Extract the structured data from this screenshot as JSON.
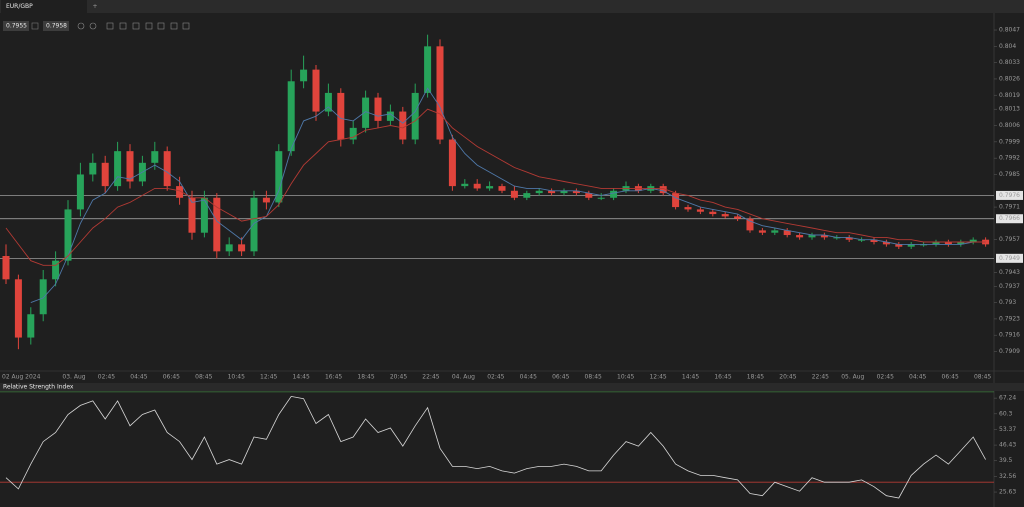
{
  "header": {
    "tab": "EUR/GBP",
    "new_tab": "+",
    "bid": "0.7955",
    "ask": "0.7958"
  },
  "chart_data": [
    {
      "type": "candlestick",
      "up_color": "#27a35a",
      "down_color": "#e0443c",
      "open": [
        0.795,
        0.794,
        0.7915,
        0.7925,
        0.794,
        0.7948,
        0.797,
        0.7985,
        0.799,
        0.798,
        0.7995,
        0.7982,
        0.799,
        0.7995,
        0.798,
        0.7975,
        0.796,
        0.7975,
        0.7952,
        0.7955,
        0.7952,
        0.7975,
        0.7973,
        0.7995,
        0.8025,
        0.803,
        0.8012,
        0.802,
        0.8,
        0.8005,
        0.8018,
        0.8008,
        0.8012,
        0.8,
        0.802,
        0.804,
        0.8,
        0.798,
        0.7981,
        0.7979,
        0.798,
        0.7978,
        0.7975,
        0.7977,
        0.7978,
        0.7977,
        0.7978,
        0.7977,
        0.7975,
        0.7975,
        0.7978,
        0.798,
        0.7978,
        0.798,
        0.7977,
        0.7971,
        0.797,
        0.7969,
        0.7968,
        0.7967,
        0.7966,
        0.7961,
        0.796,
        0.7961,
        0.7959,
        0.7958,
        0.7959,
        0.7958,
        0.7958,
        0.7957,
        0.7957,
        0.7956,
        0.7955,
        0.7954,
        0.7955,
        0.7955,
        0.7956,
        0.7955,
        0.7956,
        0.7957
      ],
      "high": [
        0.7955,
        0.7942,
        0.7928,
        0.7944,
        0.7952,
        0.7974,
        0.799,
        0.7994,
        0.7993,
        0.7999,
        0.7998,
        0.7993,
        0.7999,
        0.7997,
        0.7984,
        0.7978,
        0.7978,
        0.7977,
        0.7958,
        0.7958,
        0.7978,
        0.7978,
        0.7998,
        0.803,
        0.8036,
        0.8032,
        0.8024,
        0.8022,
        0.8008,
        0.8021,
        0.802,
        0.8015,
        0.8014,
        0.8024,
        0.8045,
        0.8043,
        0.8002,
        0.7983,
        0.7983,
        0.7982,
        0.7981,
        0.798,
        0.7978,
        0.7979,
        0.7979,
        0.7979,
        0.7979,
        0.7978,
        0.7977,
        0.7979,
        0.7982,
        0.7981,
        0.7981,
        0.7981,
        0.7978,
        0.7972,
        0.7971,
        0.797,
        0.7969,
        0.7968,
        0.7967,
        0.7962,
        0.7962,
        0.7962,
        0.796,
        0.796,
        0.796,
        0.7959,
        0.7959,
        0.7958,
        0.7958,
        0.7957,
        0.7956,
        0.7956,
        0.7956,
        0.7957,
        0.7957,
        0.7957,
        0.7958,
        0.7958
      ],
      "low": [
        0.7938,
        0.791,
        0.7912,
        0.7922,
        0.7937,
        0.7946,
        0.7967,
        0.7982,
        0.7977,
        0.7978,
        0.7979,
        0.798,
        0.7987,
        0.7978,
        0.7972,
        0.7957,
        0.7958,
        0.7949,
        0.795,
        0.795,
        0.795,
        0.797,
        0.7971,
        0.7993,
        0.8022,
        0.8008,
        0.801,
        0.7997,
        0.7998,
        0.8003,
        0.8005,
        0.8006,
        0.7998,
        0.7998,
        0.8018,
        0.7998,
        0.7978,
        0.7979,
        0.7978,
        0.7978,
        0.7977,
        0.7974,
        0.7974,
        0.7976,
        0.7976,
        0.7976,
        0.7976,
        0.7974,
        0.7974,
        0.7974,
        0.7977,
        0.7977,
        0.7977,
        0.7976,
        0.797,
        0.7969,
        0.7968,
        0.7967,
        0.7966,
        0.7965,
        0.796,
        0.7959,
        0.7959,
        0.7958,
        0.7957,
        0.7957,
        0.7957,
        0.7957,
        0.7956,
        0.7956,
        0.7955,
        0.7954,
        0.7953,
        0.7953,
        0.7954,
        0.7954,
        0.7954,
        0.7954,
        0.7955,
        0.7954
      ],
      "close": [
        0.794,
        0.7915,
        0.7925,
        0.794,
        0.7948,
        0.797,
        0.7985,
        0.799,
        0.798,
        0.7995,
        0.7982,
        0.799,
        0.7995,
        0.798,
        0.7975,
        0.796,
        0.7975,
        0.7952,
        0.7955,
        0.7952,
        0.7975,
        0.7973,
        0.7995,
        0.8025,
        0.803,
        0.8012,
        0.802,
        0.8,
        0.8005,
        0.8018,
        0.8008,
        0.8012,
        0.8,
        0.802,
        0.804,
        0.8,
        0.798,
        0.7981,
        0.7979,
        0.798,
        0.7978,
        0.7975,
        0.7977,
        0.7978,
        0.7977,
        0.7978,
        0.7977,
        0.7975,
        0.7975,
        0.7978,
        0.798,
        0.7978,
        0.798,
        0.7977,
        0.7971,
        0.797,
        0.7969,
        0.7968,
        0.7967,
        0.7966,
        0.7961,
        0.796,
        0.7961,
        0.7959,
        0.7958,
        0.7959,
        0.7958,
        0.7958,
        0.7957,
        0.7957,
        0.7956,
        0.7955,
        0.7954,
        0.7955,
        0.7955,
        0.7956,
        0.7955,
        0.7956,
        0.7957,
        0.7955
      ],
      "moving_averages": [
        {
          "color": "#4f78a8",
          "values": [
            null,
            null,
            0.793,
            0.7932,
            0.7938,
            0.795,
            0.7964,
            0.7974,
            0.7977,
            0.7984,
            0.7983,
            0.7986,
            0.7989,
            0.7986,
            0.7982,
            0.7973,
            0.7974,
            0.7965,
            0.7961,
            0.7957,
            0.7964,
            0.7967,
            0.7978,
            0.7996,
            0.8008,
            0.801,
            0.8014,
            0.8009,
            0.8008,
            0.8012,
            0.801,
            0.8011,
            0.8007,
            0.8012,
            0.8022,
            0.8014,
            0.8001,
            0.7994,
            0.7989,
            0.7986,
            0.7983,
            0.798,
            0.7979,
            0.7979,
            0.7978,
            0.7978,
            0.7978,
            0.7977,
            0.7976,
            0.7977,
            0.7978,
            0.7978,
            0.7979,
            0.7978,
            0.7975,
            0.7973,
            0.7971,
            0.797,
            0.7969,
            0.7968,
            0.7965,
            0.7963,
            0.7962,
            0.7961,
            0.796,
            0.7959,
            0.7959,
            0.7958,
            0.7958,
            0.7957,
            0.7957,
            0.7956,
            0.7955,
            0.7955,
            0.7955,
            0.7955,
            0.7955,
            0.7955,
            0.7956,
            0.7956
          ]
        },
        {
          "color": "#b33a34",
          "values": [
            0.7962,
            0.7955,
            0.7948,
            0.7946,
            0.7946,
            0.795,
            0.7956,
            0.7962,
            0.7966,
            0.7971,
            0.7973,
            0.7976,
            0.7979,
            0.7979,
            0.7978,
            0.7975,
            0.7975,
            0.7971,
            0.7968,
            0.7965,
            0.7966,
            0.7967,
            0.7972,
            0.7981,
            0.7989,
            0.7994,
            0.7999,
            0.8,
            0.8001,
            0.8004,
            0.8005,
            0.8006,
            0.8005,
            0.8008,
            0.8013,
            0.8011,
            0.8005,
            0.8001,
            0.7997,
            0.7994,
            0.7991,
            0.7988,
            0.7986,
            0.7984,
            0.7983,
            0.7982,
            0.7981,
            0.798,
            0.7979,
            0.7979,
            0.7979,
            0.7979,
            0.7979,
            0.7979,
            0.7977,
            0.7976,
            0.7974,
            0.7973,
            0.7971,
            0.797,
            0.7968,
            0.7966,
            0.7965,
            0.7964,
            0.7963,
            0.7962,
            0.7961,
            0.796,
            0.796,
            0.7959,
            0.7958,
            0.7958,
            0.7957,
            0.7957,
            0.7956,
            0.7956,
            0.7956,
            0.7956,
            0.7956,
            0.7956
          ]
        }
      ],
      "ylim": [
        0.7903,
        0.8051
      ],
      "yticks": [
        0.8047,
        0.804,
        0.8033,
        0.8026,
        0.8019,
        0.8013,
        0.8006,
        0.7999,
        0.7992,
        0.7985,
        0.7971,
        0.7957,
        0.7943,
        0.7937,
        0.793,
        0.7923,
        0.7916,
        0.7909
      ],
      "hlines": [
        0.7976,
        0.7966,
        0.7949
      ],
      "time_labels": [
        "02 Aug 2024",
        "03. Aug",
        "02:45",
        "04:45",
        "06:45",
        "08:45",
        "10:45",
        "12:45",
        "14:45",
        "16:45",
        "18:45",
        "20:45",
        "22:45",
        "04. Aug",
        "02:45",
        "04:45",
        "06:45",
        "08:45",
        "10:45",
        "12:45",
        "14:45",
        "16:45",
        "18:45",
        "20:45",
        "22:45",
        "05. Aug",
        "02:45",
        "04:45",
        "06:45",
        "08:45"
      ]
    },
    {
      "type": "line",
      "title": "Relative Strength Index",
      "color": "#d8d8d8",
      "values": [
        32,
        27,
        38,
        48,
        52,
        60,
        64,
        66,
        58,
        66,
        55,
        60,
        62,
        52,
        48,
        40,
        50,
        38,
        40,
        38,
        50,
        49,
        60,
        68,
        67,
        56,
        60,
        48,
        50,
        58,
        52,
        54,
        46,
        55,
        63,
        45,
        37,
        37,
        36,
        37,
        35,
        34,
        36,
        37,
        37,
        38,
        37,
        35,
        35,
        42,
        48,
        46,
        52,
        46,
        38,
        35,
        33,
        33,
        32,
        31,
        25,
        24,
        30,
        28,
        26,
        32,
        30,
        30,
        30,
        31,
        28,
        24,
        23,
        33,
        38,
        42,
        38,
        44,
        50,
        40
      ],
      "ylim": [
        19,
        70.4
      ],
      "yticks": [
        67.24,
        60.3,
        53.37,
        46.43,
        39.5,
        32.56,
        25.63
      ],
      "levels": [
        {
          "value": 70,
          "color": "#3f7d3f"
        },
        {
          "value": 30,
          "color": "#b33a34"
        }
      ]
    }
  ]
}
